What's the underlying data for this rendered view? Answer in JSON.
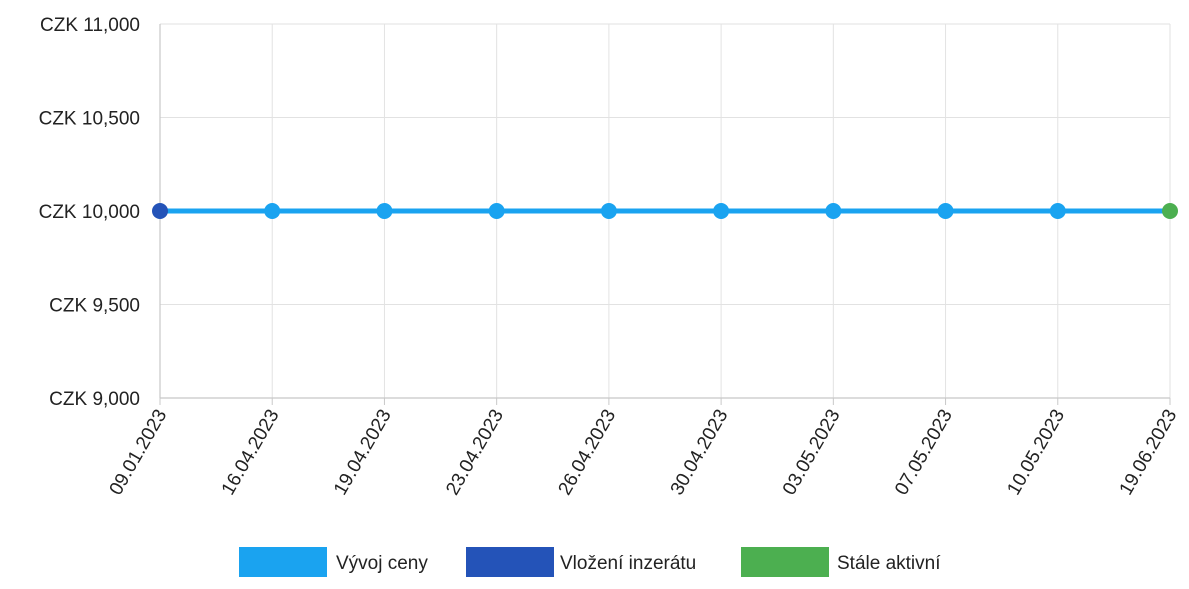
{
  "chart_data": {
    "type": "line",
    "title": "",
    "xlabel": "",
    "ylabel": "",
    "categories": [
      "09.01.2023",
      "16.04.2023",
      "19.04.2023",
      "23.04.2023",
      "26.04.2023",
      "30.04.2023",
      "03.05.2023",
      "07.05.2023",
      "10.05.2023",
      "19.06.2023"
    ],
    "series": [
      {
        "name": "Vývoj ceny",
        "values": [
          10000,
          10000,
          10000,
          10000,
          10000,
          10000,
          10000,
          10000,
          10000,
          10000
        ]
      }
    ],
    "ylim": [
      9000,
      11000
    ],
    "yticks": [
      9000,
      9500,
      10000,
      10500,
      11000
    ],
    "ytick_labels": [
      "CZK 9,000",
      "CZK 9,500",
      "CZK 10,000",
      "CZK 10,500",
      "CZK 11,000"
    ],
    "grid": true,
    "legend_position": "bottom",
    "legend": [
      {
        "label": "Vývoj ceny",
        "color": "#1aa3f0"
      },
      {
        "label": "Vložení inzerátu",
        "color": "#2453b8"
      },
      {
        "label": "Stále aktivní",
        "color": "#4caf50"
      }
    ],
    "point_colors": [
      "#2453b8",
      "#1aa3f0",
      "#1aa3f0",
      "#1aa3f0",
      "#1aa3f0",
      "#1aa3f0",
      "#1aa3f0",
      "#1aa3f0",
      "#1aa3f0",
      "#4caf50"
    ]
  }
}
